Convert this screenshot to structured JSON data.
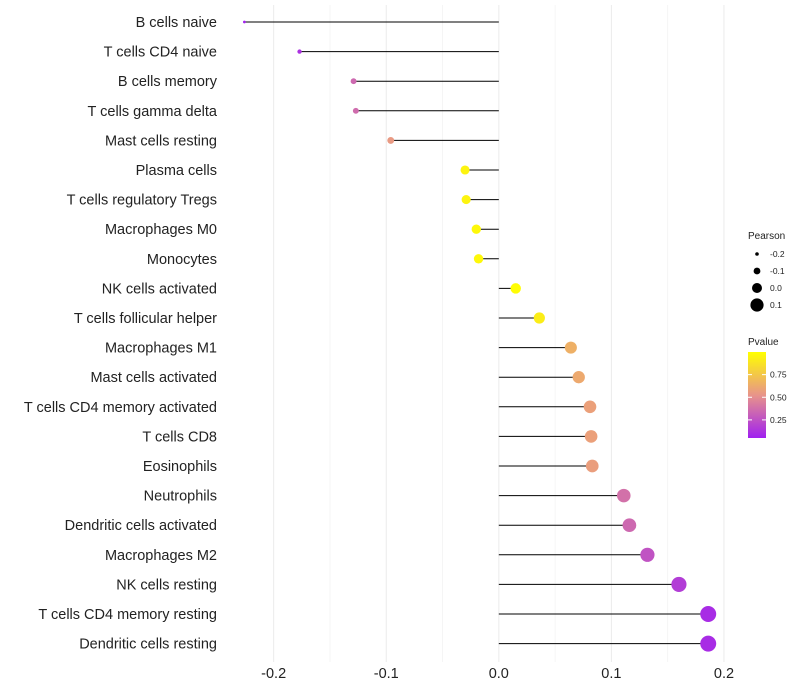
{
  "chart_data": {
    "type": "lollipop",
    "xlabel": "",
    "ylabel": "",
    "xlim": [
      -0.245,
      0.232
    ],
    "x_ticks": [
      -0.2,
      -0.1,
      0.0,
      0.1,
      0.2
    ],
    "x_tick_labels": [
      "-0.2",
      "-0.1",
      "0.0",
      "0.1",
      "0.2"
    ],
    "grid": true,
    "categories": [
      "B cells naive",
      "T cells CD4 naive",
      "B cells memory",
      "T cells gamma delta",
      "Mast cells resting",
      "Plasma cells",
      "T cells regulatory  Tregs",
      "Macrophages M0",
      "Monocytes",
      "NK cells activated",
      "T cells follicular helper",
      "Macrophages M1",
      "Mast cells activated",
      "T cells CD4 memory activated",
      "T cells CD8",
      "Eosinophils",
      "Neutrophils",
      "Dendritic cells activated",
      "Macrophages M2",
      "NK cells resting",
      "T cells CD4 memory resting",
      "Dendritic cells resting"
    ],
    "series": [
      {
        "name": "Pearson",
        "values": [
          -0.226,
          -0.177,
          -0.129,
          -0.127,
          -0.096,
          -0.03,
          -0.029,
          -0.02,
          -0.018,
          0.015,
          0.036,
          0.064,
          0.071,
          0.081,
          0.082,
          0.083,
          0.111,
          0.116,
          0.132,
          0.16,
          0.186,
          0.186
        ]
      },
      {
        "name": "Pvalue",
        "values": [
          0.06,
          0.12,
          0.35,
          0.36,
          0.55,
          0.95,
          0.95,
          0.97,
          0.97,
          0.99,
          0.92,
          0.65,
          0.62,
          0.58,
          0.58,
          0.57,
          0.38,
          0.35,
          0.26,
          0.17,
          0.1,
          0.1
        ]
      }
    ],
    "legend": {
      "position": "right",
      "size_title": "Pearson",
      "size_breaks": [
        -0.2,
        -0.1,
        0.0,
        0.1
      ],
      "size_labels": [
        "-0.2",
        "-0.1",
        "0.0",
        "0.1"
      ],
      "color_title": "Pvalue",
      "color_breaks": [
        0.25,
        0.5,
        0.75
      ],
      "color_labels": [
        "0.25",
        "0.50",
        "0.75"
      ],
      "color_range": [
        0.05,
        1.0
      ],
      "color_low": "#a020f0",
      "color_mid": "#e8948a",
      "color_high": "#ffff00"
    }
  }
}
